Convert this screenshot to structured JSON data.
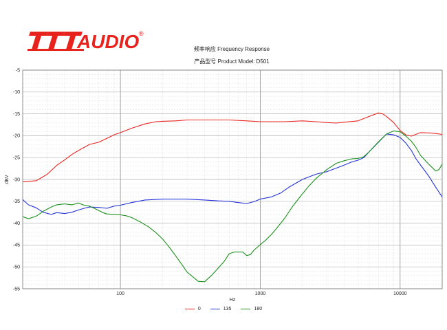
{
  "brand": {
    "logo_text": "AUDIO",
    "registered_mark": "®"
  },
  "chart_data": {
    "type": "line",
    "title": "频率响应 Frequency Response",
    "subtitle": "产品型号 Product Model: D501",
    "xlabel": "Hz",
    "ylabel": "dBV",
    "x_scale": "log",
    "xlim": [
      20,
      20000
    ],
    "ylim": [
      -55,
      -5
    ],
    "x_ticks": [
      100,
      1000,
      10000
    ],
    "y_ticks": [
      -5,
      -10,
      -15,
      -20,
      -25,
      -30,
      -35,
      -40,
      -45,
      -50,
      -55
    ],
    "grid": true,
    "legend_position": "bottom-center",
    "series": [
      {
        "name": "0",
        "color": "#e8231e",
        "points": [
          [
            20,
            -30.5
          ],
          [
            25,
            -30.3
          ],
          [
            30,
            -28.8
          ],
          [
            35,
            -26.8
          ],
          [
            40,
            -25.5
          ],
          [
            45,
            -24.3
          ],
          [
            50,
            -23.4
          ],
          [
            60,
            -22.0
          ],
          [
            70,
            -21.5
          ],
          [
            80,
            -20.6
          ],
          [
            90,
            -19.8
          ],
          [
            100,
            -19.3
          ],
          [
            120,
            -18.3
          ],
          [
            150,
            -17.3
          ],
          [
            180,
            -16.8
          ],
          [
            200,
            -16.7
          ],
          [
            250,
            -16.6
          ],
          [
            300,
            -16.4
          ],
          [
            400,
            -16.4
          ],
          [
            500,
            -16.4
          ],
          [
            600,
            -16.4
          ],
          [
            800,
            -16.6
          ],
          [
            1000,
            -16.8
          ],
          [
            1500,
            -16.8
          ],
          [
            2000,
            -16.6
          ],
          [
            2500,
            -16.8
          ],
          [
            3000,
            -17.0
          ],
          [
            3500,
            -17.1
          ],
          [
            4000,
            -16.9
          ],
          [
            5000,
            -16.6
          ],
          [
            6000,
            -15.6
          ],
          [
            7000,
            -14.8
          ],
          [
            7500,
            -15.0
          ],
          [
            8000,
            -15.6
          ],
          [
            9000,
            -17.0
          ],
          [
            10000,
            -18.8
          ],
          [
            11000,
            -19.8
          ],
          [
            12000,
            -20.1
          ],
          [
            14000,
            -19.3
          ],
          [
            17000,
            -19.4
          ],
          [
            20000,
            -19.7
          ]
        ]
      },
      {
        "name": "135",
        "color": "#2232d6",
        "points": [
          [
            20,
            -34.6
          ],
          [
            22,
            -35.8
          ],
          [
            25,
            -36.5
          ],
          [
            28,
            -37.5
          ],
          [
            32,
            -38.0
          ],
          [
            35,
            -37.6
          ],
          [
            40,
            -37.8
          ],
          [
            45,
            -37.5
          ],
          [
            50,
            -37.0
          ],
          [
            55,
            -36.6
          ],
          [
            60,
            -36.3
          ],
          [
            70,
            -36.4
          ],
          [
            80,
            -36.6
          ],
          [
            90,
            -36.1
          ],
          [
            100,
            -35.9
          ],
          [
            120,
            -35.3
          ],
          [
            150,
            -34.7
          ],
          [
            200,
            -34.5
          ],
          [
            300,
            -34.5
          ],
          [
            400,
            -34.7
          ],
          [
            500,
            -34.9
          ],
          [
            600,
            -35.0
          ],
          [
            700,
            -35.3
          ],
          [
            800,
            -35.5
          ],
          [
            900,
            -35.1
          ],
          [
            1000,
            -34.5
          ],
          [
            1200,
            -34.0
          ],
          [
            1400,
            -33.1
          ],
          [
            1600,
            -31.8
          ],
          [
            2000,
            -30.0
          ],
          [
            2500,
            -28.8
          ],
          [
            3000,
            -28.2
          ],
          [
            3500,
            -27.4
          ],
          [
            4000,
            -26.7
          ],
          [
            4500,
            -26.0
          ],
          [
            5000,
            -25.6
          ],
          [
            5500,
            -25.0
          ],
          [
            6000,
            -23.7
          ],
          [
            7000,
            -21.5
          ],
          [
            8000,
            -19.6
          ],
          [
            9000,
            -19.8
          ],
          [
            10000,
            -20.4
          ],
          [
            11000,
            -21.7
          ],
          [
            12000,
            -23.3
          ],
          [
            13000,
            -25.3
          ],
          [
            14000,
            -26.7
          ],
          [
            16000,
            -29.2
          ],
          [
            18000,
            -31.8
          ],
          [
            20000,
            -34.0
          ]
        ]
      },
      {
        "name": "180",
        "color": "#1a8f1a",
        "points": [
          [
            20,
            -38.5
          ],
          [
            22,
            -39.0
          ],
          [
            25,
            -38.4
          ],
          [
            28,
            -37.3
          ],
          [
            32,
            -36.3
          ],
          [
            35,
            -35.8
          ],
          [
            40,
            -35.6
          ],
          [
            45,
            -35.8
          ],
          [
            50,
            -35.4
          ],
          [
            55,
            -35.9
          ],
          [
            60,
            -36.1
          ],
          [
            65,
            -36.6
          ],
          [
            70,
            -37.1
          ],
          [
            75,
            -37.6
          ],
          [
            80,
            -37.9
          ],
          [
            90,
            -38.0
          ],
          [
            100,
            -38.1
          ],
          [
            110,
            -38.3
          ],
          [
            120,
            -38.7
          ],
          [
            140,
            -39.8
          ],
          [
            160,
            -40.9
          ],
          [
            180,
            -42.2
          ],
          [
            200,
            -43.6
          ],
          [
            220,
            -45.2
          ],
          [
            250,
            -47.6
          ],
          [
            280,
            -49.8
          ],
          [
            300,
            -51.2
          ],
          [
            330,
            -52.3
          ],
          [
            360,
            -53.3
          ],
          [
            400,
            -53.4
          ],
          [
            450,
            -51.9
          ],
          [
            500,
            -50.3
          ],
          [
            550,
            -48.8
          ],
          [
            600,
            -47.0
          ],
          [
            650,
            -46.6
          ],
          [
            700,
            -46.6
          ],
          [
            750,
            -46.6
          ],
          [
            800,
            -47.4
          ],
          [
            850,
            -47.2
          ],
          [
            900,
            -46.2
          ],
          [
            1000,
            -44.9
          ],
          [
            1100,
            -43.8
          ],
          [
            1200,
            -42.6
          ],
          [
            1300,
            -41.3
          ],
          [
            1500,
            -38.8
          ],
          [
            1700,
            -36.2
          ],
          [
            2000,
            -33.3
          ],
          [
            2200,
            -31.7
          ],
          [
            2500,
            -29.8
          ],
          [
            3000,
            -27.7
          ],
          [
            3500,
            -26.3
          ],
          [
            4000,
            -25.7
          ],
          [
            4500,
            -25.3
          ],
          [
            5000,
            -25.2
          ],
          [
            5500,
            -24.8
          ],
          [
            6000,
            -23.7
          ],
          [
            7000,
            -21.4
          ],
          [
            8000,
            -19.6
          ],
          [
            9000,
            -18.9
          ],
          [
            10000,
            -19.1
          ],
          [
            11000,
            -20.1
          ],
          [
            12000,
            -21.2
          ],
          [
            13000,
            -22.7
          ],
          [
            14000,
            -24.5
          ],
          [
            16000,
            -26.5
          ],
          [
            18000,
            -28.1
          ],
          [
            19000,
            -27.7
          ],
          [
            20000,
            -26.5
          ]
        ]
      }
    ]
  }
}
